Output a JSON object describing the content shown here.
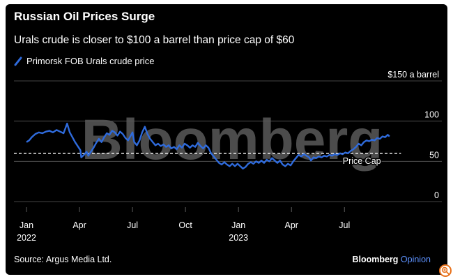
{
  "header": {
    "title": "Russian Oil Prices Surge",
    "subtitle": "Urals crude is closer to $100 a barrel than price cap of $60"
  },
  "footer": {
    "source": "Source: Argus Media Ltd.",
    "brand_main": "Bloomberg",
    "brand_accent": "Opinion"
  },
  "watermark": "Bloomberg",
  "colors": {
    "background": "#000000",
    "line": "#2f6bdc",
    "text": "#ffffff",
    "grid": "#5a5a5a",
    "opinion_accent": "#5b8ff9"
  },
  "chart_data": {
    "type": "line",
    "title": "Russian Oil Prices Surge",
    "subtitle": "Urals crude is closer to $100 a barrel than price cap of $60",
    "ylabel": "$ a barrel",
    "ylim": [
      0,
      150
    ],
    "y_ticks": [
      {
        "value": 150,
        "label": "$150 a barrel"
      },
      {
        "value": 100,
        "label": "100"
      },
      {
        "value": 50,
        "label": "50"
      },
      {
        "value": 0,
        "label": "0"
      }
    ],
    "x_ticks": [
      {
        "month": 0,
        "label": "Jan",
        "year": "2022"
      },
      {
        "month": 3,
        "label": "Apr",
        "year": ""
      },
      {
        "month": 6,
        "label": "Jul",
        "year": ""
      },
      {
        "month": 9,
        "label": "Oct",
        "year": ""
      },
      {
        "month": 12,
        "label": "Jan",
        "year": "2023"
      },
      {
        "month": 15,
        "label": "Apr",
        "year": ""
      },
      {
        "month": 18,
        "label": "Jul",
        "year": ""
      }
    ],
    "xlim": [
      0,
      21.5
    ],
    "grid": true,
    "legend": {
      "position": "top-left",
      "label": "Primorsk FOB Urals crude price"
    },
    "reference_line": {
      "label": "Price Cap",
      "value": 60,
      "style": "dashed"
    },
    "series": [
      {
        "name": "Primorsk FOB Urals crude price",
        "points": [
          [
            0.0,
            74
          ],
          [
            0.15,
            76
          ],
          [
            0.3,
            80
          ],
          [
            0.5,
            84
          ],
          [
            0.7,
            86
          ],
          [
            0.9,
            85
          ],
          [
            1.1,
            87
          ],
          [
            1.3,
            88
          ],
          [
            1.5,
            86
          ],
          [
            1.7,
            89
          ],
          [
            1.9,
            87
          ],
          [
            2.1,
            85
          ],
          [
            2.2,
            91
          ],
          [
            2.3,
            97
          ],
          [
            2.45,
            86
          ],
          [
            2.6,
            80
          ],
          [
            2.75,
            74
          ],
          [
            2.9,
            69
          ],
          [
            3.05,
            64
          ],
          [
            3.1,
            55
          ],
          [
            3.25,
            58
          ],
          [
            3.4,
            62
          ],
          [
            3.5,
            57
          ],
          [
            3.65,
            62
          ],
          [
            3.8,
            67
          ],
          [
            3.95,
            73
          ],
          [
            4.1,
            78
          ],
          [
            4.25,
            74
          ],
          [
            4.4,
            80
          ],
          [
            4.55,
            85
          ],
          [
            4.7,
            83
          ],
          [
            4.85,
            88
          ],
          [
            5.0,
            86
          ],
          [
            5.15,
            82
          ],
          [
            5.3,
            87
          ],
          [
            5.45,
            84
          ],
          [
            5.6,
            79
          ],
          [
            5.75,
            76
          ],
          [
            5.9,
            82
          ],
          [
            6.0,
            86
          ],
          [
            6.1,
            74
          ],
          [
            6.25,
            70
          ],
          [
            6.4,
            76
          ],
          [
            6.55,
            86
          ],
          [
            6.7,
            93
          ],
          [
            6.85,
            84
          ],
          [
            7.0,
            78
          ],
          [
            7.15,
            74
          ],
          [
            7.3,
            70
          ],
          [
            7.45,
            72
          ],
          [
            7.6,
            69
          ],
          [
            7.75,
            71
          ],
          [
            7.9,
            68
          ],
          [
            8.05,
            70
          ],
          [
            8.2,
            66
          ],
          [
            8.35,
            68
          ],
          [
            8.5,
            65
          ],
          [
            8.65,
            70
          ],
          [
            8.8,
            67
          ],
          [
            8.95,
            72
          ],
          [
            9.1,
            70
          ],
          [
            9.25,
            67
          ],
          [
            9.4,
            70
          ],
          [
            9.55,
            68
          ],
          [
            9.7,
            73
          ],
          [
            9.85,
            69
          ],
          [
            10.0,
            66
          ],
          [
            10.15,
            70
          ],
          [
            10.3,
            67
          ],
          [
            10.45,
            60
          ],
          [
            10.6,
            56
          ],
          [
            10.75,
            52
          ],
          [
            10.9,
            48
          ],
          [
            11.05,
            46
          ],
          [
            11.2,
            49
          ],
          [
            11.35,
            46
          ],
          [
            11.5,
            44
          ],
          [
            11.65,
            47
          ],
          [
            11.8,
            44
          ],
          [
            11.95,
            47
          ],
          [
            12.1,
            44
          ],
          [
            12.25,
            41
          ],
          [
            12.4,
            43
          ],
          [
            12.55,
            47
          ],
          [
            12.7,
            49
          ],
          [
            12.85,
            47
          ],
          [
            13.0,
            50
          ],
          [
            13.15,
            48
          ],
          [
            13.3,
            51
          ],
          [
            13.45,
            48
          ],
          [
            13.6,
            52
          ],
          [
            13.75,
            50
          ],
          [
            13.9,
            54
          ],
          [
            14.05,
            51
          ],
          [
            14.2,
            48
          ],
          [
            14.35,
            51
          ],
          [
            14.5,
            46
          ],
          [
            14.65,
            44
          ],
          [
            14.8,
            47
          ],
          [
            14.95,
            45
          ],
          [
            15.1,
            50
          ],
          [
            15.25,
            54
          ],
          [
            15.4,
            58
          ],
          [
            15.55,
            56
          ],
          [
            15.7,
            59
          ],
          [
            15.85,
            57
          ],
          [
            16.0,
            55
          ],
          [
            16.1,
            51
          ],
          [
            16.25,
            55
          ],
          [
            16.4,
            54
          ],
          [
            16.55,
            56
          ],
          [
            16.7,
            55
          ],
          [
            16.85,
            57
          ],
          [
            17.0,
            56
          ],
          [
            17.15,
            58
          ],
          [
            17.3,
            57
          ],
          [
            17.45,
            59
          ],
          [
            17.6,
            58
          ],
          [
            17.75,
            60
          ],
          [
            17.9,
            59
          ],
          [
            18.05,
            61
          ],
          [
            18.2,
            60
          ],
          [
            18.35,
            63
          ],
          [
            18.5,
            65
          ],
          [
            18.65,
            68
          ],
          [
            18.8,
            72
          ],
          [
            18.95,
            70
          ],
          [
            19.1,
            74
          ],
          [
            19.25,
            76
          ],
          [
            19.4,
            75
          ],
          [
            19.55,
            77
          ],
          [
            19.7,
            76
          ],
          [
            19.85,
            79
          ],
          [
            20.0,
            78
          ],
          [
            20.15,
            81
          ],
          [
            20.3,
            80
          ],
          [
            20.45,
            83
          ],
          [
            20.55,
            81
          ]
        ]
      }
    ]
  }
}
